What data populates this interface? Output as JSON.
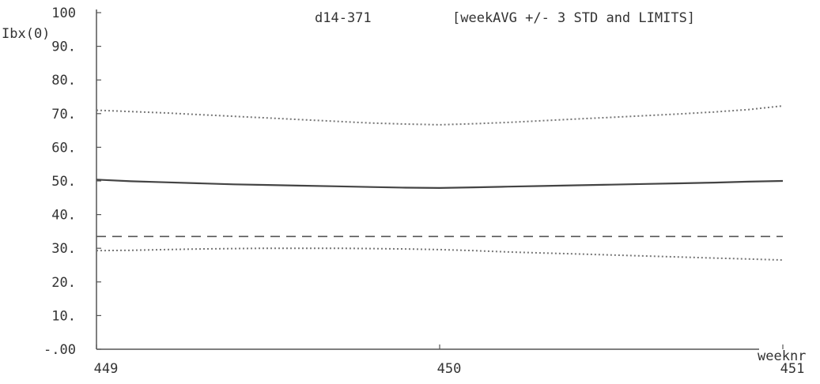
{
  "chart_data": {
    "type": "line",
    "title": "d14-371",
    "subtitle": "[weekAVG +/- 3 STD and LIMITS]",
    "ylabel": "Ibx(0)",
    "xlabel": "weeknr",
    "xlim": [
      449,
      451
    ],
    "ylim": [
      0,
      100
    ],
    "x_ticks": [
      449,
      450,
      451
    ],
    "x_tick_labels": [
      "449",
      "450",
      "451"
    ],
    "y_ticks": [
      0,
      10,
      20,
      30,
      40,
      50,
      60,
      70,
      80,
      90,
      100
    ],
    "y_tick_labels": [
      "-.00",
      "10.",
      "20.",
      "30.",
      "40.",
      "50.",
      "60.",
      "70.",
      "80.",
      "90.",
      "100"
    ],
    "grid": false,
    "series": [
      {
        "style": "dotted",
        "color": "#777777",
        "x": [
          449,
          449.1,
          449.2,
          449.3,
          449.4,
          449.5,
          449.6,
          449.7,
          449.8,
          449.9,
          450,
          450.1,
          450.2,
          450.3,
          450.4,
          450.5,
          450.6,
          450.7,
          450.8,
          450.9,
          451
        ],
        "y": [
          71.0,
          70.6,
          70.2,
          69.7,
          69.2,
          68.7,
          68.2,
          67.7,
          67.2,
          66.9,
          66.7,
          67.0,
          67.4,
          67.9,
          68.4,
          68.9,
          69.4,
          69.9,
          70.5,
          71.2,
          72.3
        ]
      },
      {
        "style": "solid",
        "color": "#444444",
        "x": [
          449,
          449.1,
          449.2,
          449.3,
          449.4,
          449.5,
          449.6,
          449.7,
          449.8,
          449.9,
          450,
          450.1,
          450.2,
          450.3,
          450.4,
          450.5,
          450.6,
          450.7,
          450.8,
          450.9,
          451
        ],
        "y": [
          50.4,
          49.9,
          49.6,
          49.3,
          49.0,
          48.8,
          48.6,
          48.4,
          48.2,
          48.0,
          47.9,
          48.1,
          48.3,
          48.5,
          48.7,
          48.9,
          49.1,
          49.3,
          49.5,
          49.8,
          50.0
        ]
      },
      {
        "style": "dashed",
        "color": "#555555",
        "x": [
          449,
          451
        ],
        "y": [
          33.5,
          33.5
        ]
      },
      {
        "style": "dotted",
        "color": "#777777",
        "x": [
          449,
          449.1,
          449.2,
          449.3,
          449.4,
          449.5,
          449.6,
          449.7,
          449.8,
          449.9,
          450,
          450.1,
          450.2,
          450.3,
          450.4,
          450.5,
          450.6,
          450.7,
          450.8,
          450.9,
          451
        ],
        "y": [
          29.3,
          29.4,
          29.6,
          29.8,
          29.9,
          30.0,
          30.0,
          30.0,
          29.9,
          29.8,
          29.6,
          29.3,
          28.9,
          28.6,
          28.3,
          28.0,
          27.7,
          27.4,
          27.1,
          26.8,
          26.5
        ]
      }
    ]
  }
}
